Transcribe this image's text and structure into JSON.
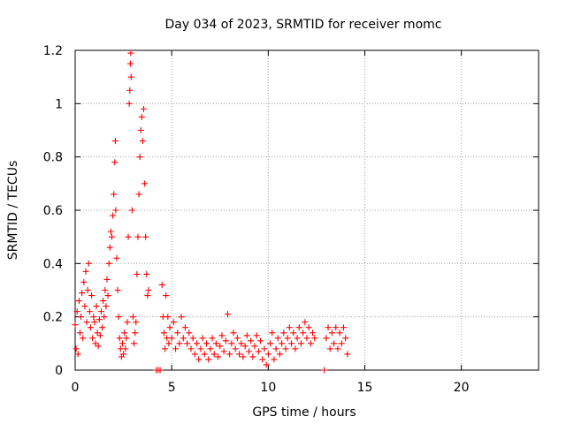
{
  "chart_data": {
    "type": "scatter",
    "title": "Day 034 of 2023, SRMTID for receiver momc",
    "xlabel": "GPS time / hours",
    "ylabel": "SRMTID / TECUs",
    "xlim": [
      0,
      24
    ],
    "ylim": [
      0,
      1.2
    ],
    "xticks": [
      0,
      5,
      10,
      15,
      20
    ],
    "xtick_labels": [
      "0",
      "5",
      "10",
      "15",
      "20"
    ],
    "yticks": [
      0,
      0.2,
      0.4,
      0.6,
      0.8,
      1.0,
      1.2
    ],
    "ytick_labels": [
      "0",
      "0.2",
      "0.4",
      "0.6",
      "0.8",
      "1",
      "1.2"
    ],
    "grid": true,
    "marker": "plus",
    "series_color": "#ff0000",
    "series": [
      {
        "name": "SRMTID",
        "points": [
          [
            0.0,
            0.17
          ],
          [
            0.05,
            0.08
          ],
          [
            0.1,
            0.22
          ],
          [
            0.15,
            0.06
          ],
          [
            0.2,
            0.26
          ],
          [
            0.25,
            0.14
          ],
          [
            0.3,
            0.2
          ],
          [
            0.35,
            0.29
          ],
          [
            0.4,
            0.12
          ],
          [
            0.45,
            0.33
          ],
          [
            0.5,
            0.24
          ],
          [
            0.55,
            0.37
          ],
          [
            0.6,
            0.18
          ],
          [
            0.65,
            0.3
          ],
          [
            0.7,
            0.4
          ],
          [
            0.75,
            0.22
          ],
          [
            0.8,
            0.16
          ],
          [
            0.85,
            0.28
          ],
          [
            0.9,
            0.12
          ],
          [
            0.95,
            0.2
          ],
          [
            1.0,
            0.18
          ],
          [
            1.05,
            0.1
          ],
          [
            1.1,
            0.24
          ],
          [
            1.15,
            0.14
          ],
          [
            1.2,
            0.09
          ],
          [
            1.25,
            0.19
          ],
          [
            1.3,
            0.13
          ],
          [
            1.35,
            0.22
          ],
          [
            1.4,
            0.16
          ],
          [
            1.45,
            0.26
          ],
          [
            1.5,
            0.2
          ],
          [
            1.55,
            0.3
          ],
          [
            1.6,
            0.24
          ],
          [
            1.65,
            0.34
          ],
          [
            1.7,
            0.28
          ],
          [
            1.75,
            0.4
          ],
          [
            1.8,
            0.46
          ],
          [
            1.85,
            0.52
          ],
          [
            1.9,
            0.5
          ],
          [
            1.95,
            0.58
          ],
          [
            2.0,
            0.66
          ],
          [
            2.05,
            0.78
          ],
          [
            2.08,
            0.86
          ],
          [
            2.1,
            0.6
          ],
          [
            2.15,
            0.42
          ],
          [
            2.2,
            0.3
          ],
          [
            2.25,
            0.2
          ],
          [
            2.3,
            0.12
          ],
          [
            2.35,
            0.08
          ],
          [
            2.4,
            0.05
          ],
          [
            2.45,
            0.1
          ],
          [
            2.5,
            0.06
          ],
          [
            2.55,
            0.14
          ],
          [
            2.6,
            0.08
          ],
          [
            2.65,
            0.12
          ],
          [
            2.7,
            0.18
          ],
          [
            2.75,
            0.5
          ],
          [
            2.8,
            1.0
          ],
          [
            2.83,
            1.05
          ],
          [
            2.86,
            1.15
          ],
          [
            2.88,
            1.19
          ],
          [
            2.9,
            1.1
          ],
          [
            2.95,
            0.6
          ],
          [
            3.0,
            0.2
          ],
          [
            3.05,
            0.1
          ],
          [
            3.1,
            0.14
          ],
          [
            3.15,
            0.18
          ],
          [
            3.2,
            0.36
          ],
          [
            3.25,
            0.5
          ],
          [
            3.3,
            0.66
          ],
          [
            3.35,
            0.8
          ],
          [
            3.4,
            0.9
          ],
          [
            3.45,
            0.95
          ],
          [
            3.5,
            0.86
          ],
          [
            3.55,
            0.98
          ],
          [
            3.6,
            0.7
          ],
          [
            3.65,
            0.5
          ],
          [
            3.7,
            0.36
          ],
          [
            3.75,
            0.28
          ],
          [
            3.8,
            0.3
          ],
          [
            4.2,
            0.0
          ],
          [
            4.3,
            0.0
          ],
          [
            4.4,
            0.0
          ],
          [
            4.5,
            0.32
          ],
          [
            4.55,
            0.2
          ],
          [
            4.6,
            0.14
          ],
          [
            4.65,
            0.08
          ],
          [
            4.7,
            0.28
          ],
          [
            4.75,
            0.12
          ],
          [
            4.8,
            0.2
          ],
          [
            4.85,
            0.1
          ],
          [
            4.9,
            0.16
          ],
          [
            5.0,
            0.12
          ],
          [
            5.1,
            0.18
          ],
          [
            5.2,
            0.08
          ],
          [
            5.3,
            0.14
          ],
          [
            5.4,
            0.1
          ],
          [
            5.5,
            0.2
          ],
          [
            5.6,
            0.12
          ],
          [
            5.7,
            0.16
          ],
          [
            5.8,
            0.1
          ],
          [
            5.9,
            0.14
          ],
          [
            6.0,
            0.08
          ],
          [
            6.1,
            0.12
          ],
          [
            6.2,
            0.06
          ],
          [
            6.3,
            0.1
          ],
          [
            6.4,
            0.04
          ],
          [
            6.5,
            0.08
          ],
          [
            6.6,
            0.12
          ],
          [
            6.7,
            0.06
          ],
          [
            6.8,
            0.1
          ],
          [
            6.9,
            0.04
          ],
          [
            7.0,
            0.08
          ],
          [
            7.1,
            0.12
          ],
          [
            7.2,
            0.06
          ],
          [
            7.3,
            0.1
          ],
          [
            7.4,
            0.05
          ],
          [
            7.5,
            0.09
          ],
          [
            7.6,
            0.13
          ],
          [
            7.7,
            0.07
          ],
          [
            7.8,
            0.11
          ],
          [
            7.9,
            0.21
          ],
          [
            8.0,
            0.06
          ],
          [
            8.1,
            0.1
          ],
          [
            8.2,
            0.14
          ],
          [
            8.3,
            0.08
          ],
          [
            8.4,
            0.12
          ],
          [
            8.5,
            0.06
          ],
          [
            8.6,
            0.1
          ],
          [
            8.7,
            0.05
          ],
          [
            8.8,
            0.09
          ],
          [
            8.9,
            0.13
          ],
          [
            9.0,
            0.07
          ],
          [
            9.1,
            0.11
          ],
          [
            9.2,
            0.05
          ],
          [
            9.3,
            0.09
          ],
          [
            9.4,
            0.13
          ],
          [
            9.5,
            0.07
          ],
          [
            9.6,
            0.11
          ],
          [
            9.7,
            0.04
          ],
          [
            9.8,
            0.08
          ],
          [
            9.9,
            0.02
          ],
          [
            10.0,
            0.06
          ],
          [
            10.1,
            0.1
          ],
          [
            10.2,
            0.14
          ],
          [
            10.3,
            0.04
          ],
          [
            10.4,
            0.08
          ],
          [
            10.5,
            0.12
          ],
          [
            10.6,
            0.06
          ],
          [
            10.7,
            0.1
          ],
          [
            10.8,
            0.14
          ],
          [
            10.9,
            0.08
          ],
          [
            11.0,
            0.12
          ],
          [
            11.1,
            0.16
          ],
          [
            11.2,
            0.1
          ],
          [
            11.3,
            0.14
          ],
          [
            11.4,
            0.08
          ],
          [
            11.5,
            0.12
          ],
          [
            11.6,
            0.16
          ],
          [
            11.7,
            0.1
          ],
          [
            11.8,
            0.14
          ],
          [
            11.9,
            0.18
          ],
          [
            12.0,
            0.12
          ],
          [
            12.1,
            0.16
          ],
          [
            12.2,
            0.1
          ],
          [
            12.3,
            0.14
          ],
          [
            12.4,
            0.12
          ],
          [
            12.9,
            0.0
          ],
          [
            13.0,
            0.12
          ],
          [
            13.1,
            0.16
          ],
          [
            13.2,
            0.08
          ],
          [
            13.3,
            0.14
          ],
          [
            13.4,
            0.1
          ],
          [
            13.5,
            0.16
          ],
          [
            13.6,
            0.08
          ],
          [
            13.7,
            0.14
          ],
          [
            13.8,
            0.1
          ],
          [
            13.9,
            0.16
          ],
          [
            14.0,
            0.12
          ],
          [
            14.1,
            0.06
          ]
        ]
      }
    ]
  }
}
